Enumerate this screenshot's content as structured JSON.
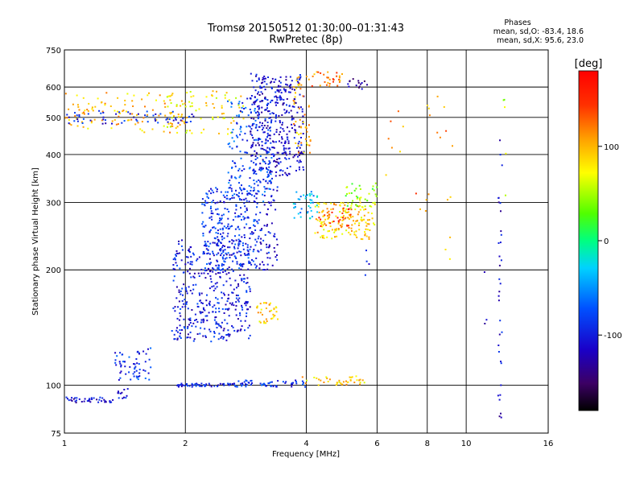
{
  "chart_data": {
    "type": "scatter",
    "title": "Tromsø 20150512 01:30:00–01:31:43",
    "subtitle": "RwPretec (8p)",
    "xlabel": "Frequency [MHz]",
    "ylabel": "Stationary phase Virtual Height [km]",
    "x_scale": "log2",
    "y_scale": "log",
    "xlim": [
      1,
      16
    ],
    "ylim": [
      75,
      750
    ],
    "xticks": [
      1,
      2,
      4,
      6,
      8,
      10,
      16
    ],
    "xtick_labels": [
      "1",
      "2",
      "4",
      "6",
      "8",
      "10",
      "16"
    ],
    "yticks": [
      75,
      100,
      200,
      300,
      400,
      500,
      600,
      750
    ],
    "ytick_labels": [
      "75",
      "100",
      "200",
      "300",
      "400",
      "500",
      "600",
      "750"
    ],
    "grid": true,
    "phases_box": {
      "title": "Phases",
      "line1": "mean, sd,O: -83.4, 18.6",
      "line2": "mean, sd,X:  95.6, 23.0"
    },
    "colorbar": {
      "label": "[deg]",
      "range": [
        -180,
        180
      ],
      "ticks": [
        100,
        0,
        -100
      ],
      "tick_labels": [
        "100",
        "0",
        "-100"
      ],
      "colormap": "rainbow"
    },
    "clusters": [
      {
        "fmin": 1.0,
        "fmax": 1.35,
        "hmin": 90,
        "hmax": 93,
        "phase": -110,
        "n": 40
      },
      {
        "fmin": 1.35,
        "fmax": 1.45,
        "hmin": 92,
        "hmax": 98,
        "phase": -105,
        "n": 12
      },
      {
        "fmin": 1.33,
        "fmax": 1.65,
        "hmin": 103,
        "hmax": 125,
        "phase": -90,
        "n": 60
      },
      {
        "fmin": 1.0,
        "fmax": 2.0,
        "hmin": 455,
        "hmax": 580,
        "phase": 95,
        "n": 110
      },
      {
        "fmin": 1.0,
        "fmax": 2.1,
        "hmin": 480,
        "hmax": 520,
        "phase": -100,
        "n": 60
      },
      {
        "fmin": 1.75,
        "fmax": 2.8,
        "hmin": 450,
        "hmax": 590,
        "phase": 80,
        "n": 80
      },
      {
        "fmin": 1.9,
        "fmax": 2.6,
        "hmin": 99,
        "hmax": 101,
        "phase": -100,
        "n": 50
      },
      {
        "fmin": 2.6,
        "fmax": 4.0,
        "hmin": 99,
        "hmax": 103,
        "phase": -90,
        "n": 60
      },
      {
        "fmin": 3.9,
        "fmax": 5.7,
        "hmin": 100,
        "hmax": 106,
        "phase": 90,
        "n": 40
      },
      {
        "fmin": 1.85,
        "fmax": 2.9,
        "hmin": 130,
        "hmax": 240,
        "phase": -100,
        "n": 420
      },
      {
        "fmin": 2.2,
        "fmax": 3.05,
        "hmin": 200,
        "hmax": 330,
        "phase": -90,
        "n": 280
      },
      {
        "fmin": 2.55,
        "fmax": 3.3,
        "hmin": 300,
        "hmax": 560,
        "phase": -80,
        "n": 180
      },
      {
        "fmin": 2.9,
        "fmax": 3.95,
        "hmin": 350,
        "hmax": 650,
        "phase": -110,
        "n": 380
      },
      {
        "fmin": 3.0,
        "fmax": 3.4,
        "hmin": 200,
        "hmax": 350,
        "phase": -100,
        "n": 80
      },
      {
        "fmin": 3.0,
        "fmax": 3.4,
        "hmin": 145,
        "hmax": 165,
        "phase": 90,
        "n": 35
      },
      {
        "fmin": 3.7,
        "fmax": 4.1,
        "hmin": 400,
        "hmax": 640,
        "phase": 100,
        "n": 50
      },
      {
        "fmin": 4.1,
        "fmax": 5.0,
        "hmin": 600,
        "hmax": 660,
        "phase": 120,
        "n": 30
      },
      {
        "fmin": 5.0,
        "fmax": 5.8,
        "hmin": 590,
        "hmax": 630,
        "phase": -130,
        "n": 15
      },
      {
        "fmin": 4.2,
        "fmax": 6.0,
        "hmin": 240,
        "hmax": 300,
        "phase": 90,
        "n": 150
      },
      {
        "fmin": 4.3,
        "fmax": 5.2,
        "hmin": 260,
        "hmax": 290,
        "phase": 140,
        "n": 30
      },
      {
        "fmin": 5.0,
        "fmax": 6.0,
        "hmin": 290,
        "hmax": 340,
        "phase": 40,
        "n": 40
      },
      {
        "fmin": 3.7,
        "fmax": 4.3,
        "hmin": 270,
        "hmax": 320,
        "phase": -40,
        "n": 40
      },
      {
        "fmin": 5.6,
        "fmax": 5.8,
        "hmin": 180,
        "hmax": 240,
        "phase": -110,
        "n": 4
      },
      {
        "fmin": 6.0,
        "fmax": 7.0,
        "hmin": 330,
        "hmax": 520,
        "phase": 110,
        "n": 7
      },
      {
        "fmin": 7.5,
        "fmax": 8.2,
        "hmin": 260,
        "hmax": 320,
        "phase": 120,
        "n": 5
      },
      {
        "fmin": 8.0,
        "fmax": 9.3,
        "hmin": 380,
        "hmax": 620,
        "phase": 110,
        "n": 9
      },
      {
        "fmin": 8.8,
        "fmax": 9.4,
        "hmin": 200,
        "hmax": 360,
        "phase": 95,
        "n": 5
      },
      {
        "fmin": 12.0,
        "fmax": 12.3,
        "hmin": 82,
        "hmax": 480,
        "phase": -110,
        "n": 34
      },
      {
        "fmin": 12.3,
        "fmax": 12.6,
        "hmin": 300,
        "hmax": 560,
        "phase": 60,
        "n": 5
      },
      {
        "fmin": 10.5,
        "fmax": 11.5,
        "hmin": 110,
        "hmax": 200,
        "phase": -110,
        "n": 3
      }
    ]
  }
}
